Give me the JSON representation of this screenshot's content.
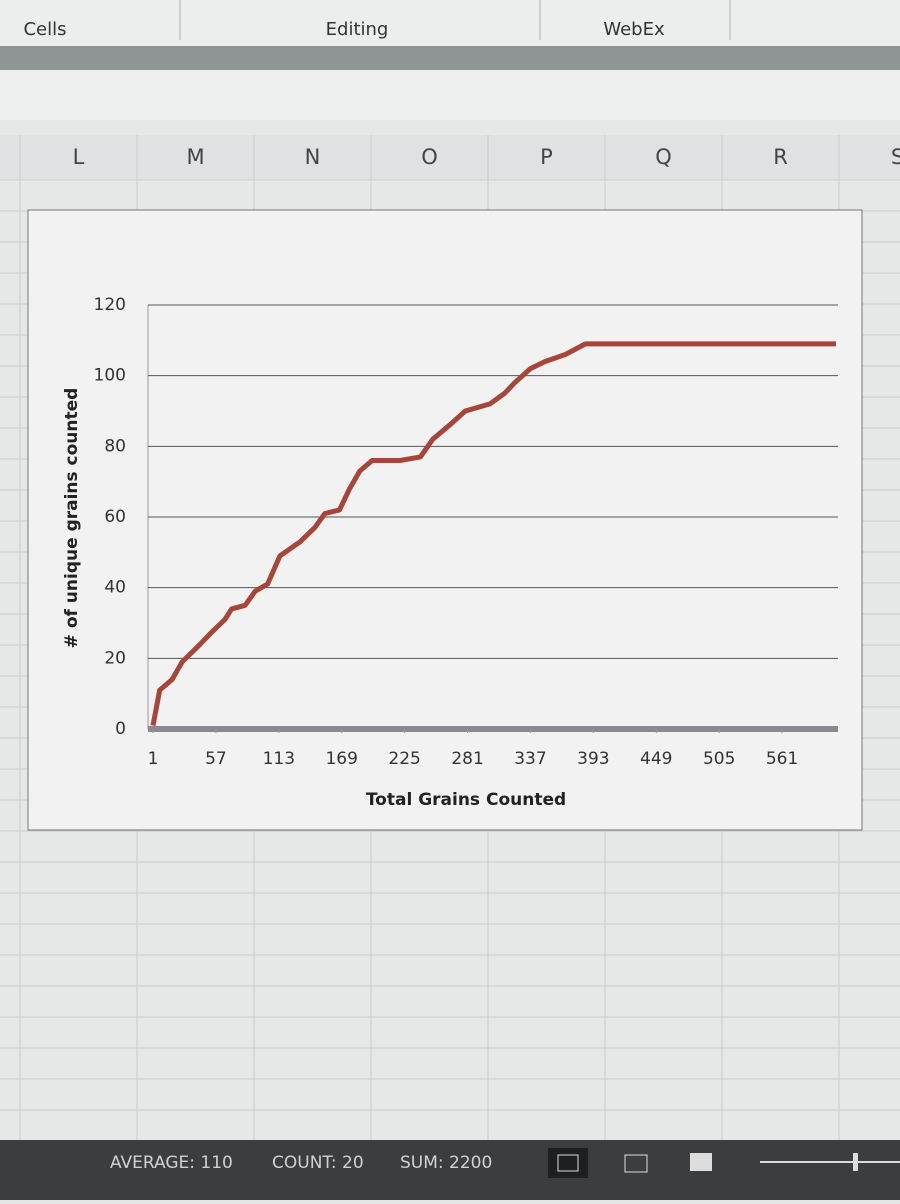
{
  "ribbon": {
    "groups": [
      "Cells",
      "Editing",
      "WebEx"
    ]
  },
  "columns": [
    "L",
    "M",
    "N",
    "O",
    "P",
    "Q",
    "R",
    "S"
  ],
  "chart_data": {
    "type": "line",
    "x_label": "Total Grains Counted",
    "y_label": "# of unique grains counted",
    "x": [
      1,
      7,
      18,
      27,
      43,
      52,
      65,
      71,
      83,
      92,
      103,
      114,
      132,
      145,
      154,
      167,
      176,
      185,
      196,
      221,
      239,
      250,
      265,
      279,
      301,
      314,
      323,
      337,
      350,
      368,
      386,
      609
    ],
    "values": [
      1,
      11,
      14,
      19,
      24,
      27,
      31,
      34,
      35,
      39,
      41,
      49,
      53,
      57,
      61,
      62,
      68,
      73,
      76,
      76,
      77,
      82,
      86,
      90,
      92,
      95,
      98,
      102,
      104,
      106,
      109,
      109
    ],
    "color": "#a8453a",
    "xlim": [
      1,
      609
    ],
    "xticks": [
      1,
      57,
      113,
      169,
      225,
      281,
      337,
      393,
      449,
      505,
      561
    ],
    "ylim": [
      0,
      120
    ],
    "yticks": [
      0,
      20,
      40,
      60,
      80,
      100,
      120
    ],
    "grid": true
  },
  "status_bar": {
    "items": [
      "AVERAGE: 110",
      "COUNT: 20",
      "SUM: 2200"
    ]
  }
}
